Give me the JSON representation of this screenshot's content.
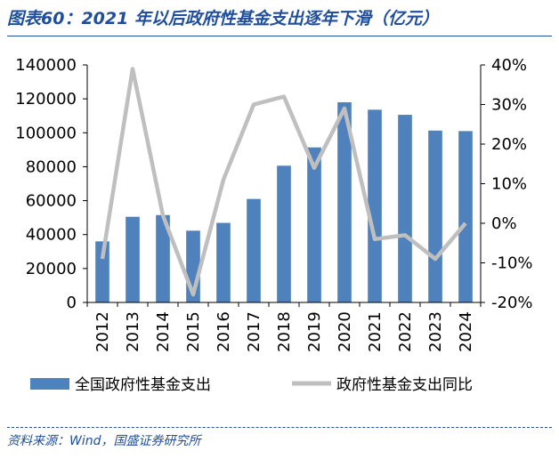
{
  "title": "图表60：2021 年以后政府性基金支出逐年下滑（亿元）",
  "source": "资料来源：Wind，国盛证券研究所",
  "colors": {
    "bar": "#4f81bd",
    "line": "#bfbfbf",
    "title": "#1f4e9c",
    "axis": "#000000"
  },
  "chart_data": {
    "type": "bar+line",
    "title": "2021 年以后政府性基金支出逐年下滑（亿元）",
    "categories": [
      "2012",
      "2013",
      "2014",
      "2015",
      "2016",
      "2017",
      "2018",
      "2019",
      "2020",
      "2021",
      "2022",
      "2023",
      "2024"
    ],
    "series": [
      {
        "name": "全国政府性基金支出",
        "type": "bar",
        "axis": "left",
        "values": [
          36000,
          50500,
          51500,
          42300,
          46900,
          61000,
          80600,
          91400,
          118000,
          113600,
          110600,
          101300,
          101000
        ]
      },
      {
        "name": "政府性基金支出同比",
        "type": "line",
        "axis": "right",
        "unit": "%",
        "values": [
          -9,
          39,
          2,
          -18,
          11,
          30,
          32,
          14,
          29,
          -4,
          -3,
          -9,
          0
        ]
      }
    ],
    "left_axis": {
      "min": 0,
      "max": 140000,
      "ticks": [
        "0",
        "20000",
        "40000",
        "60000",
        "80000",
        "100000",
        "120000",
        "140000"
      ]
    },
    "right_axis": {
      "min": -20,
      "max": 40,
      "ticks": [
        "-20%",
        "-10%",
        "0%",
        "10%",
        "20%",
        "30%",
        "40%"
      ]
    },
    "legend_position": "bottom"
  }
}
